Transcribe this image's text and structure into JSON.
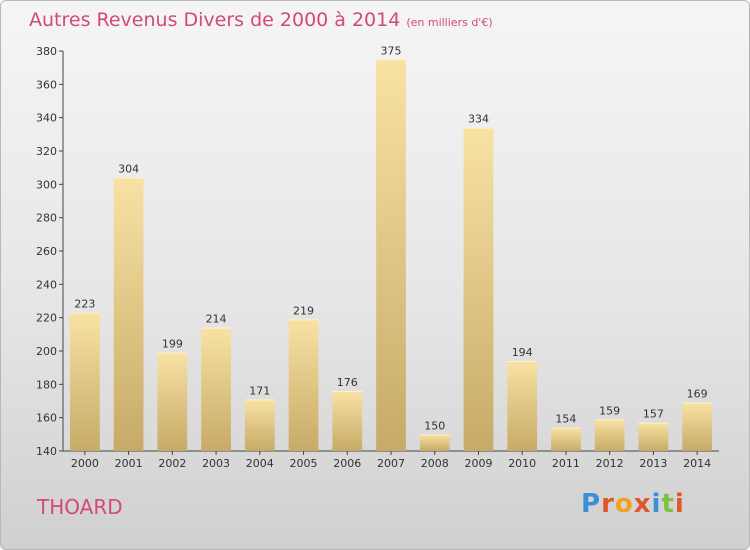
{
  "title": "Autres Revenus Divers de 2000 à 2014",
  "title_unit": "(en milliers d'€)",
  "commune": "THOARD",
  "logo": "Proxiti",
  "colors": {
    "title": "#d24a75",
    "bar_light": "#f7df9e",
    "bar_dark": "#c9ad6b"
  },
  "chart_data": {
    "type": "bar",
    "categories": [
      "2000",
      "2001",
      "2002",
      "2003",
      "2004",
      "2005",
      "2006",
      "2007",
      "2008",
      "2009",
      "2010",
      "2011",
      "2012",
      "2013",
      "2014"
    ],
    "values": [
      223,
      304,
      199,
      214,
      171,
      219,
      176,
      375,
      150,
      334,
      194,
      154,
      159,
      157,
      169
    ],
    "ylim": [
      140,
      380
    ],
    "yticks": [
      140,
      160,
      180,
      200,
      220,
      240,
      260,
      280,
      300,
      320,
      340,
      360,
      380
    ],
    "grid": false,
    "data_labels": true
  }
}
